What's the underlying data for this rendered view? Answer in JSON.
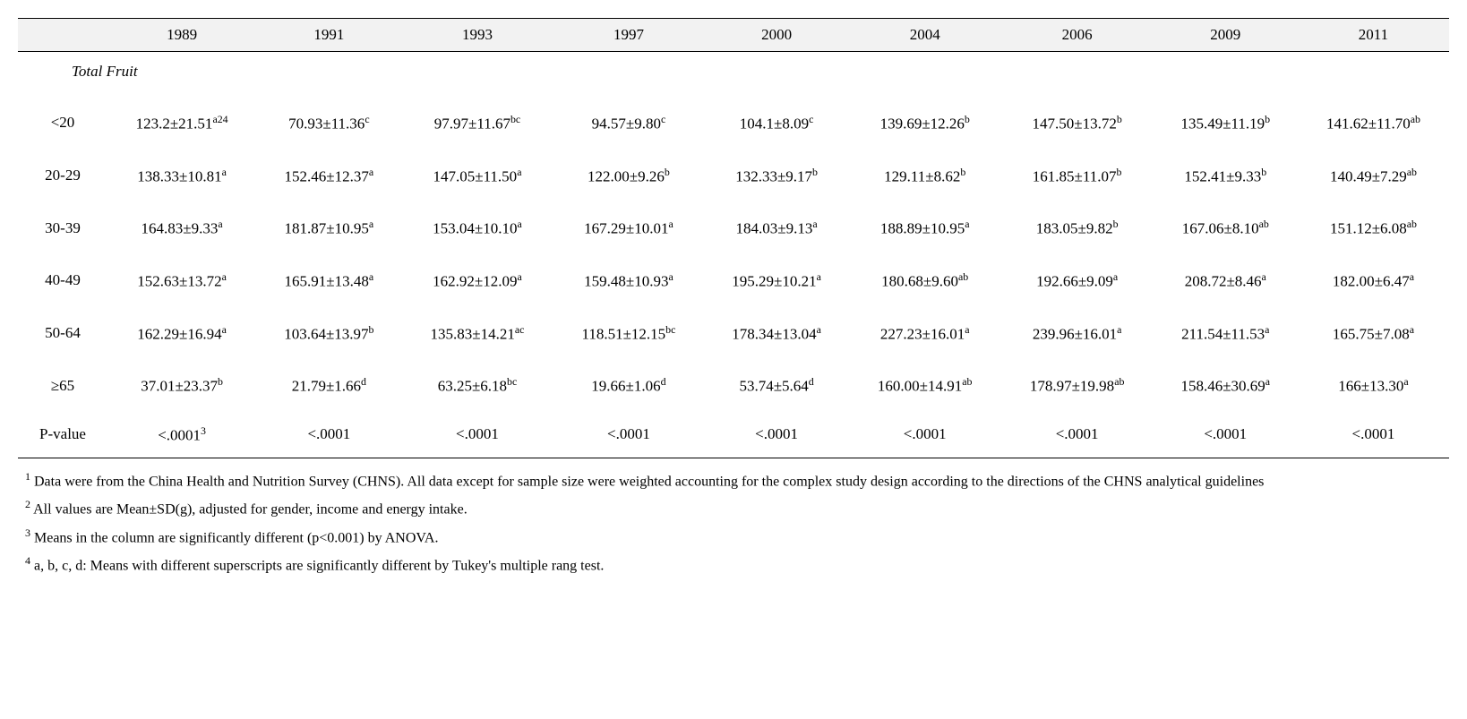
{
  "header": {
    "blank": "",
    "years": [
      "1989",
      "1991",
      "1993",
      "1997",
      "2000",
      "2004",
      "2006",
      "2009",
      "2011"
    ]
  },
  "section_title": "Total Fruit",
  "rows": [
    {
      "label": "<20",
      "cells": [
        {
          "val": "123.2±21.51",
          "sup": "a24"
        },
        {
          "val": "70.93±11.36",
          "sup": "c"
        },
        {
          "val": "97.97±11.67",
          "sup": "bc"
        },
        {
          "val": "94.57±9.80",
          "sup": "c"
        },
        {
          "val": "104.1±8.09",
          "sup": "c"
        },
        {
          "val": "139.69±12.26",
          "sup": "b"
        },
        {
          "val": "147.50±13.72",
          "sup": "b"
        },
        {
          "val": "135.49±11.19",
          "sup": "b"
        },
        {
          "val": "141.62±11.70",
          "sup": "ab"
        }
      ]
    },
    {
      "label": "20-29",
      "cells": [
        {
          "val": "138.33±10.81",
          "sup": "a"
        },
        {
          "val": "152.46±12.37",
          "sup": "a"
        },
        {
          "val": "147.05±11.50",
          "sup": "a"
        },
        {
          "val": "122.00±9.26",
          "sup": "b"
        },
        {
          "val": "132.33±9.17",
          "sup": "b"
        },
        {
          "val": "129.11±8.62",
          "sup": "b"
        },
        {
          "val": "161.85±11.07",
          "sup": "b"
        },
        {
          "val": "152.41±9.33",
          "sup": "b"
        },
        {
          "val": "140.49±7.29",
          "sup": "ab"
        }
      ]
    },
    {
      "label": "30-39",
      "cells": [
        {
          "val": "164.83±9.33",
          "sup": "a"
        },
        {
          "val": "181.87±10.95",
          "sup": "a"
        },
        {
          "val": "153.04±10.10",
          "sup": "a"
        },
        {
          "val": "167.29±10.01",
          "sup": "a"
        },
        {
          "val": "184.03±9.13",
          "sup": "a"
        },
        {
          "val": "188.89±10.95",
          "sup": "a"
        },
        {
          "val": "183.05±9.82",
          "sup": "b"
        },
        {
          "val": "167.06±8.10",
          "sup": "ab"
        },
        {
          "val": "151.12±6.08",
          "sup": "ab"
        }
      ]
    },
    {
      "label": "40-49",
      "cells": [
        {
          "val": "152.63±13.72",
          "sup": "a"
        },
        {
          "val": "165.91±13.48",
          "sup": "a"
        },
        {
          "val": "162.92±12.09",
          "sup": "a"
        },
        {
          "val": "159.48±10.93",
          "sup": "a"
        },
        {
          "val": "195.29±10.21",
          "sup": "a"
        },
        {
          "val": "180.68±9.60",
          "sup": "ab"
        },
        {
          "val": "192.66±9.09",
          "sup": "a"
        },
        {
          "val": "208.72±8.46",
          "sup": "a"
        },
        {
          "val": "182.00±6.47",
          "sup": "a"
        }
      ]
    },
    {
      "label": "50-64",
      "cells": [
        {
          "val": "162.29±16.94",
          "sup": "a"
        },
        {
          "val": "103.64±13.97",
          "sup": "b"
        },
        {
          "val": "135.83±14.21",
          "sup": "ac"
        },
        {
          "val": "118.51±12.15",
          "sup": "bc"
        },
        {
          "val": "178.34±13.04",
          "sup": "a"
        },
        {
          "val": "227.23±16.01",
          "sup": "a"
        },
        {
          "val": "239.96±16.01",
          "sup": "a"
        },
        {
          "val": "211.54±11.53",
          "sup": "a"
        },
        {
          "val": "165.75±7.08",
          "sup": "a"
        }
      ]
    },
    {
      "label": "≥65",
      "cells": [
        {
          "val": "37.01±23.37",
          "sup": "b"
        },
        {
          "val": "21.79±1.66",
          "sup": "d"
        },
        {
          "val": "63.25±6.18",
          "sup": "bc"
        },
        {
          "val": "19.66±1.06",
          "sup": "d"
        },
        {
          "val": "53.74±5.64",
          "sup": "d"
        },
        {
          "val": "160.00±14.91",
          "sup": "ab"
        },
        {
          "val": "178.97±19.98",
          "sup": "ab"
        },
        {
          "val": "158.46±30.69",
          "sup": "a"
        },
        {
          "val": "166±13.30",
          "sup": "a"
        }
      ]
    }
  ],
  "pvalue_row": {
    "label": "P-value",
    "cells": [
      {
        "val": "<.0001",
        "sup": "3"
      },
      {
        "val": "<.0001",
        "sup": ""
      },
      {
        "val": "<.0001",
        "sup": ""
      },
      {
        "val": "<.0001",
        "sup": ""
      },
      {
        "val": "<.0001",
        "sup": ""
      },
      {
        "val": "<.0001",
        "sup": ""
      },
      {
        "val": "<.0001",
        "sup": ""
      },
      {
        "val": "<.0001",
        "sup": ""
      },
      {
        "val": "<.0001",
        "sup": ""
      }
    ]
  },
  "footnotes": [
    {
      "num": "1",
      "text": "Data were from the China Health and Nutrition Survey (CHNS). All data except for sample size were weighted accounting for the complex study design according to the directions of the CHNS analytical guidelines"
    },
    {
      "num": "2",
      "text": "All values are Mean±SD(g), adjusted for gender, income and energy intake."
    },
    {
      "num": "3",
      "text": "Means in the column are significantly different (p<0.001) by ANOVA."
    },
    {
      "num": "4",
      "text": "a, b, c, d: Means with different superscripts are significantly different by Tukey's multiple rang test."
    }
  ]
}
